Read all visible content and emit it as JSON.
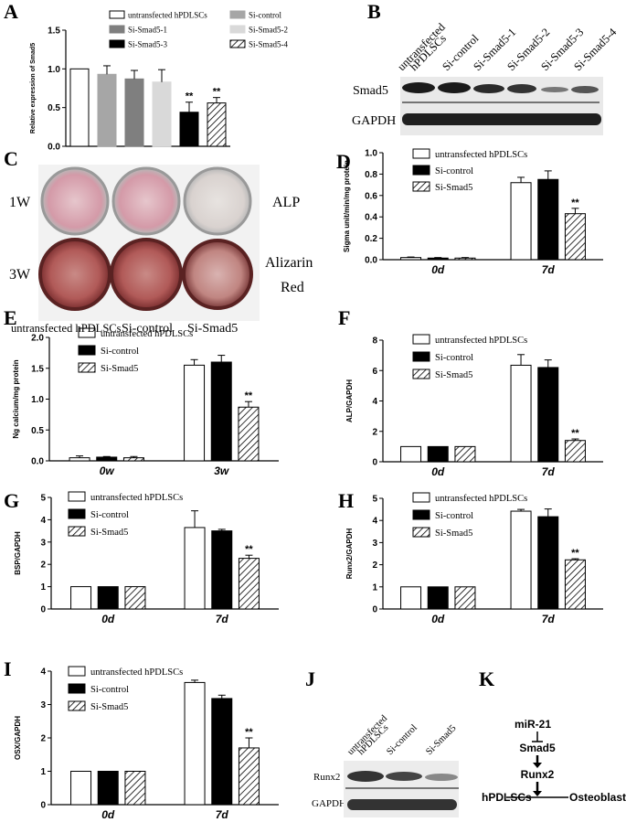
{
  "colors": {
    "white_bar": "#ffffff",
    "black_bar": "#000000",
    "stroke": "#000000",
    "gray1": "#a6a6a6",
    "gray2": "#7f7f7f",
    "gray3": "#d9d9d9"
  },
  "panels": {
    "A": {
      "label": "A"
    },
    "B": {
      "label": "B",
      "lanes": [
        "untransfected hPDLSCs",
        "Si-control",
        "Si-Smad5-1",
        "Si-Smad5-2",
        "Si-Smad5-3",
        "Si-Smad5-4"
      ],
      "rows": [
        "Smad5",
        "GAPDH"
      ]
    },
    "C": {
      "label": "C",
      "rows": [
        "1W",
        "3W"
      ],
      "right_labels": [
        "ALP",
        "Alizarin",
        "Red"
      ],
      "columns": [
        "untransfected hPDLSCs",
        "Si-control",
        "Si-Smad5"
      ]
    },
    "D": {
      "label": "D"
    },
    "E": {
      "label": "E"
    },
    "F": {
      "label": "F"
    },
    "G": {
      "label": "G"
    },
    "H": {
      "label": "H"
    },
    "I": {
      "label": "I"
    },
    "J": {
      "label": "J",
      "lanes": [
        "untransfected hPDLSCs",
        "Si-control",
        "Si-Smad5"
      ],
      "rows": [
        "Runx2",
        "GAPDH"
      ]
    },
    "K": {
      "label": "K",
      "nodes": [
        "miR-21",
        "Smad5",
        "Runx2",
        "hPDLSCs",
        "Osteoblasts"
      ]
    }
  },
  "chart_data": [
    {
      "id": "A",
      "type": "bar",
      "ylabel": "Relative expression of Smad5",
      "ylim": [
        0,
        1.5
      ],
      "yticks": [
        "0.0",
        "0.5",
        "1.0",
        "1.5"
      ],
      "categories": [
        "untransfected hPDLSCs",
        "Si-control",
        "Si-Smad5-1",
        "Si-Smad5-2",
        "Si-Smad5-3",
        "Si-Smad5-4"
      ],
      "values": [
        1.0,
        0.93,
        0.87,
        0.83,
        0.44,
        0.56
      ],
      "errors": [
        0,
        0.11,
        0.11,
        0.16,
        0.13,
        0.07
      ],
      "significance": [
        "",
        "",
        "",
        "",
        "**",
        "**"
      ],
      "legend": [
        "untransfected hPDLSCs",
        "Si-control",
        "Si-Smad5-1",
        "Si-Smad5-2",
        "Si-Smad5-3",
        "Si-Smad5-4"
      ]
    },
    {
      "id": "D",
      "type": "bar",
      "ylabel": "Sigma unit/min/mg protein",
      "ylim": [
        0,
        1.0
      ],
      "yticks": [
        "0.0",
        "0.2",
        "0.4",
        "0.6",
        "0.8",
        "1.0"
      ],
      "categories": [
        "0d",
        "7d"
      ],
      "series": [
        {
          "name": "untransfected hPDLSCs",
          "values": [
            0.02,
            0.72
          ],
          "errors": [
            0.005,
            0.05
          ]
        },
        {
          "name": "Si-control",
          "values": [
            0.015,
            0.75
          ],
          "errors": [
            0.005,
            0.08
          ]
        },
        {
          "name": "Si-Smad5",
          "values": [
            0.015,
            0.43
          ],
          "errors": [
            0.005,
            0.05
          ]
        }
      ],
      "significance": [
        "",
        "**"
      ]
    },
    {
      "id": "E",
      "type": "bar",
      "ylabel": "Ng calcium/mg protein",
      "ylim": [
        0,
        2.0
      ],
      "yticks": [
        "0.0",
        "0.5",
        "1.0",
        "1.5",
        "2.0"
      ],
      "categories": [
        "0w",
        "3w"
      ],
      "series": [
        {
          "name": "untransfected hPDLSCs",
          "values": [
            0.05,
            1.55
          ],
          "errors": [
            0.03,
            0.09
          ]
        },
        {
          "name": "Si-control",
          "values": [
            0.06,
            1.6
          ],
          "errors": [
            0.01,
            0.11
          ]
        },
        {
          "name": "Si-Smad5",
          "values": [
            0.05,
            0.87
          ],
          "errors": [
            0.02,
            0.09
          ]
        }
      ],
      "significance": [
        "",
        "**"
      ]
    },
    {
      "id": "F",
      "type": "bar",
      "ylabel": "ALP/GAPDH",
      "ylim": [
        0,
        8
      ],
      "yticks": [
        "0",
        "2",
        "4",
        "6",
        "8"
      ],
      "categories": [
        "0d",
        "7d"
      ],
      "series": [
        {
          "name": "untransfected hPDLSCs",
          "values": [
            1.0,
            6.35
          ],
          "errors": [
            0,
            0.7
          ]
        },
        {
          "name": "Si-control",
          "values": [
            1.0,
            6.2
          ],
          "errors": [
            0,
            0.5
          ]
        },
        {
          "name": "Si-Smad5",
          "values": [
            1.0,
            1.4
          ],
          "errors": [
            0,
            0.1
          ]
        }
      ],
      "significance": [
        "",
        "**"
      ]
    },
    {
      "id": "G",
      "type": "bar",
      "ylabel": "BSP/GAPDH",
      "ylim": [
        0,
        5
      ],
      "yticks": [
        "0",
        "1",
        "2",
        "3",
        "4",
        "5"
      ],
      "categories": [
        "0d",
        "7d"
      ],
      "series": [
        {
          "name": "untransfected hPDLSCs",
          "values": [
            1.0,
            3.65
          ],
          "errors": [
            0,
            0.75
          ]
        },
        {
          "name": "Si-control",
          "values": [
            1.0,
            3.5
          ],
          "errors": [
            0,
            0.07
          ]
        },
        {
          "name": "Si-Smad5",
          "values": [
            1.0,
            2.27
          ],
          "errors": [
            0,
            0.14
          ]
        }
      ],
      "significance": [
        "",
        "**"
      ]
    },
    {
      "id": "H",
      "type": "bar",
      "ylabel": "Runx2/GAPDH",
      "ylim": [
        0,
        5
      ],
      "yticks": [
        "0",
        "1",
        "2",
        "3",
        "4",
        "5"
      ],
      "categories": [
        "0d",
        "7d"
      ],
      "series": [
        {
          "name": "untransfected hPDLSCs",
          "values": [
            1.0,
            4.42
          ],
          "errors": [
            0,
            0.08
          ]
        },
        {
          "name": "Si-control",
          "values": [
            1.0,
            4.17
          ],
          "errors": [
            0,
            0.35
          ]
        },
        {
          "name": "Si-Smad5",
          "values": [
            1.0,
            2.22
          ],
          "errors": [
            0,
            0.05
          ]
        }
      ],
      "significance": [
        "",
        "**"
      ]
    },
    {
      "id": "I",
      "type": "bar",
      "ylabel": "OSX/GAPDH",
      "ylim": [
        0,
        4
      ],
      "yticks": [
        "0",
        "1",
        "2",
        "3",
        "4"
      ],
      "categories": [
        "0d",
        "7d"
      ],
      "series": [
        {
          "name": "untransfected hPDLSCs",
          "values": [
            1.0,
            3.66
          ],
          "errors": [
            0,
            0.07
          ]
        },
        {
          "name": "Si-control",
          "values": [
            1.0,
            3.18
          ],
          "errors": [
            0,
            0.1
          ]
        },
        {
          "name": "Si-Smad5",
          "values": [
            1.0,
            1.7
          ],
          "errors": [
            0,
            0.3
          ]
        }
      ],
      "significance": [
        "",
        "**"
      ]
    }
  ]
}
